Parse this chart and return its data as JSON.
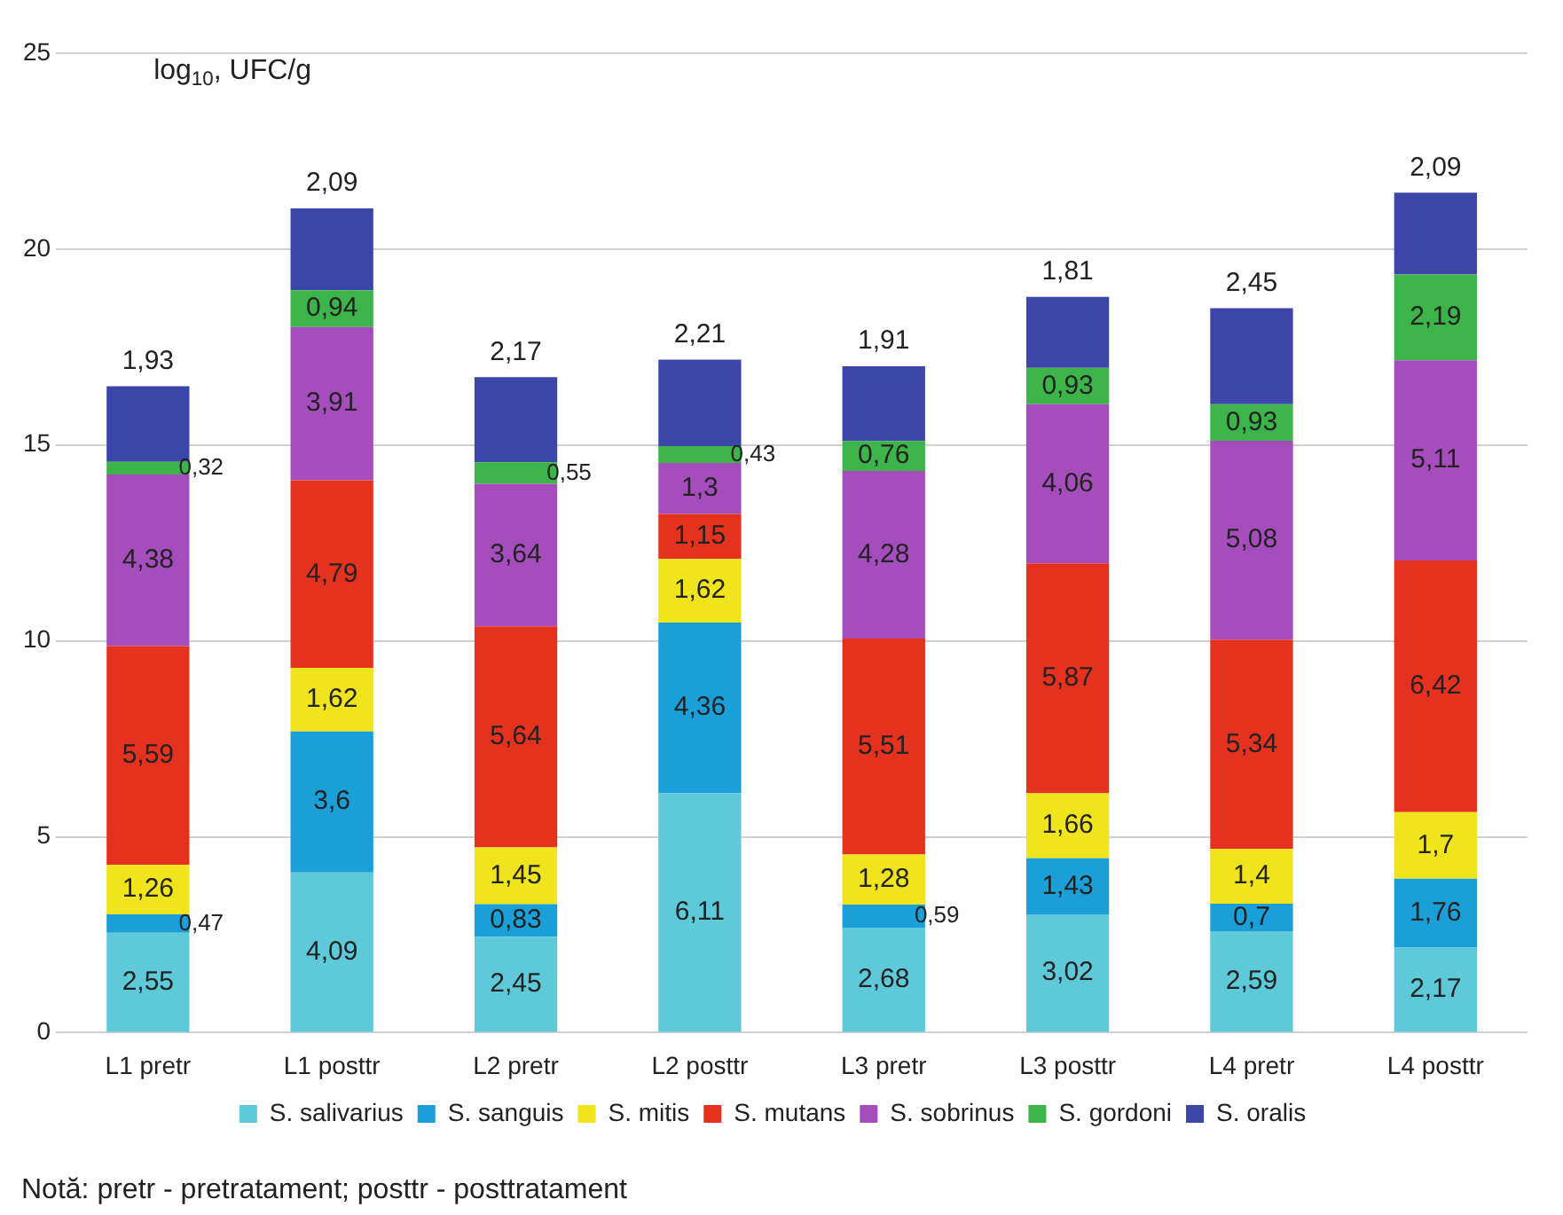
{
  "chart_data": {
    "type": "bar",
    "stacked": true,
    "ylabel": "log$_{10}$, UFC/g",
    "categories": [
      "L1 pretr",
      "L1 posttr",
      "L2 pretr",
      "L2 posttr",
      "L3 pretr",
      "L3 posttr",
      "L4 pretr",
      "L4 posttr"
    ],
    "series": [
      {
        "name": "S. salivarius",
        "color": "#5ec9d9",
        "values": [
          2.55,
          4.09,
          2.45,
          6.11,
          2.68,
          3.02,
          2.59,
          2.17
        ],
        "value_labels": [
          "2,55",
          "4,09",
          "2,45",
          "6,11",
          "2,68",
          "3,02",
          "2,59",
          "2,17"
        ]
      },
      {
        "name": "S. sanguis",
        "color": "#1a9fd8",
        "values": [
          0.47,
          3.6,
          0.83,
          4.36,
          0.59,
          1.43,
          0.7,
          1.76
        ],
        "value_labels": [
          "0,47",
          "3,6",
          "0,83",
          "4,36",
          "0,59",
          "1,43",
          "0,7",
          "1,76"
        ]
      },
      {
        "name": "S. mitis",
        "color": "#f0e41c",
        "values": [
          1.26,
          1.62,
          1.45,
          1.62,
          1.28,
          1.66,
          1.4,
          1.7
        ],
        "value_labels": [
          "1,26",
          "1,62",
          "1,45",
          "1,62",
          "1,28",
          "1,66",
          "1,4",
          "1,7"
        ]
      },
      {
        "name": "S. mutans",
        "color": "#e5321f",
        "values": [
          5.59,
          4.79,
          5.64,
          1.15,
          5.51,
          5.87,
          5.34,
          6.42
        ],
        "value_labels": [
          "5,59",
          "4,79",
          "5,64",
          "1,15",
          "5,51",
          "5,87",
          "5,34",
          "6,42"
        ]
      },
      {
        "name": "S. sobrinus",
        "color": "#a64dbd",
        "values": [
          4.38,
          3.91,
          3.64,
          1.3,
          4.28,
          4.06,
          5.08,
          5.11
        ],
        "value_labels": [
          "4,38",
          "3,91",
          "3,64",
          "1,3",
          "4,28",
          "4,06",
          "5,08",
          "5,11"
        ]
      },
      {
        "name": "S. gordoni",
        "color": "#3cb44a",
        "values": [
          0.32,
          0.94,
          0.55,
          0.43,
          0.76,
          0.93,
          0.93,
          2.19
        ],
        "value_labels": [
          "0,32",
          "0,94",
          "0,55",
          "0,43",
          "0,76",
          "0,93",
          "0,93",
          "2,19"
        ]
      },
      {
        "name": "S. oralis",
        "color": "#3c46a8",
        "values": [
          1.93,
          2.09,
          2.17,
          2.21,
          1.91,
          1.81,
          2.45,
          2.09
        ],
        "value_labels": [
          "1,93",
          "2,09",
          "2,17",
          "2,21",
          "1,91",
          "1,81",
          "2,45",
          "2,09"
        ]
      }
    ],
    "ylim": [
      0,
      25
    ],
    "yticks": [
      0,
      5,
      10,
      15,
      20,
      25
    ],
    "grid": "y",
    "legend": "bottom",
    "annotations": [
      "Notă: pretr - pretratament; posttr - posttratament"
    ]
  }
}
